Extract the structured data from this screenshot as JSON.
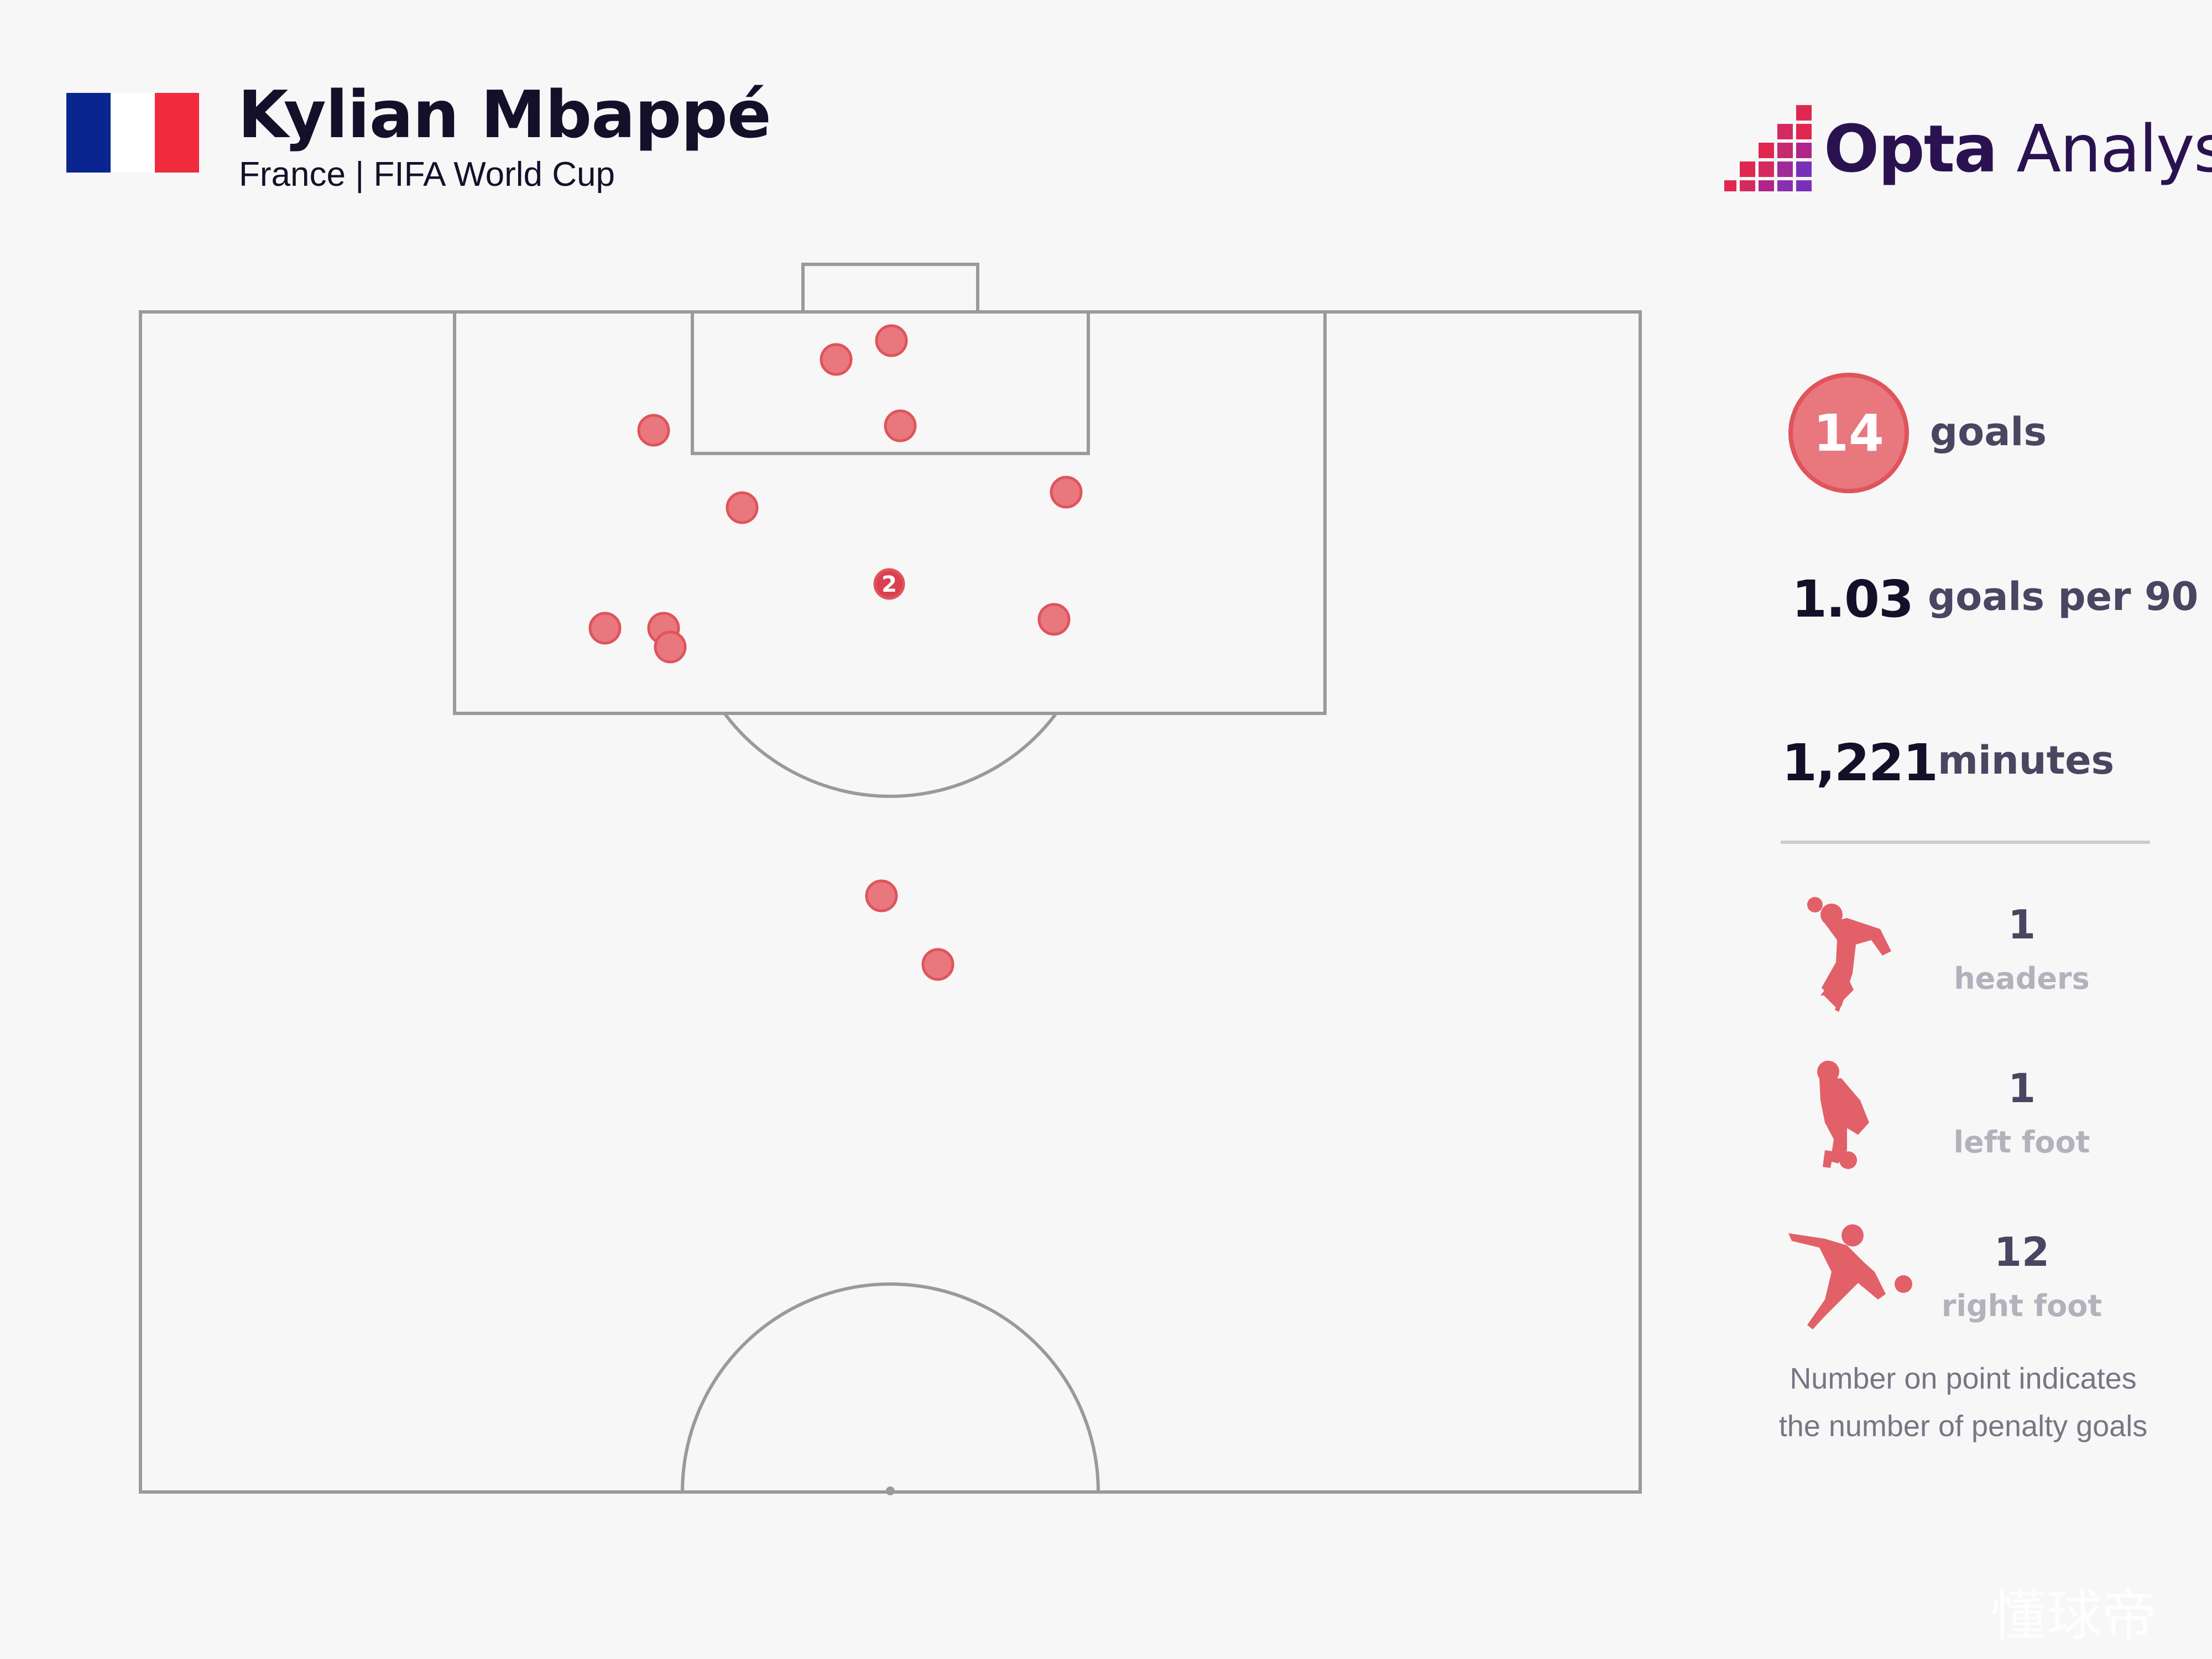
{
  "header": {
    "player_name": "Kylian Mbappé",
    "subtitle": "France | FIFA World Cup",
    "flag_colors": [
      "#0a2590",
      "#ffffff",
      "#ef2b3d"
    ]
  },
  "logo": {
    "brand_bold": "Opta",
    "brand_light": " Analyst",
    "mark_colors": [
      "#e0274f",
      "#b0258a",
      "#7a2fb8"
    ]
  },
  "colors": {
    "goal_fill": "#e8787e",
    "goal_stroke": "#e0545c",
    "penalty_fill": "#d9414f",
    "pitch_line": "#9a9a9a"
  },
  "stats": {
    "goals_value": "14",
    "goals_label": "goals",
    "per90_value": "1.03",
    "per90_label": "goals per 90",
    "minutes_value": "1,221",
    "minutes_label": "minutes"
  },
  "shot_types": [
    {
      "value": "1",
      "label": "headers",
      "icon": "header-player-icon"
    },
    {
      "value": "1",
      "label": "left foot",
      "icon": "left-foot-player-icon"
    },
    {
      "value": "12",
      "label": "right foot",
      "icon": "right-foot-player-icon"
    }
  ],
  "note": {
    "line1": "Number on point indicates",
    "line2": "the number of penalty goals"
  },
  "watermark": "懂球帝",
  "goals_map": [
    {
      "label": ""
    },
    {
      "label": ""
    },
    {
      "label": ""
    },
    {
      "label": ""
    },
    {
      "label": ""
    },
    {
      "label": ""
    },
    {
      "label": "2"
    },
    {
      "label": ""
    },
    {
      "label": ""
    },
    {
      "label": ""
    },
    {
      "label": ""
    },
    {
      "label": ""
    },
    {
      "label": ""
    }
  ]
}
